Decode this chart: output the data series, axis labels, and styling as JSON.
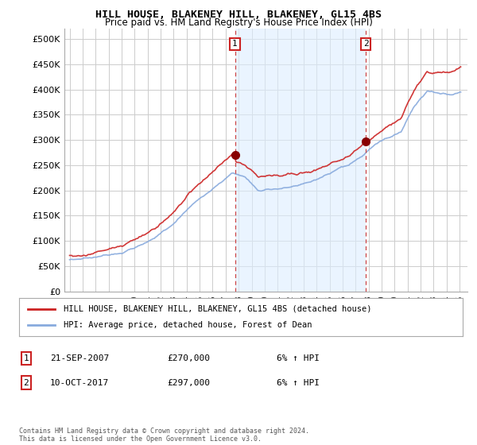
{
  "title": "HILL HOUSE, BLAKENEY HILL, BLAKENEY, GL15 4BS",
  "subtitle": "Price paid vs. HM Land Registry's House Price Index (HPI)",
  "ylim": [
    0,
    520000
  ],
  "yticks": [
    0,
    50000,
    100000,
    150000,
    200000,
    250000,
    300000,
    350000,
    400000,
    450000,
    500000
  ],
  "ytick_labels": [
    "£0",
    "£50K",
    "£100K",
    "£150K",
    "£200K",
    "£250K",
    "£300K",
    "£350K",
    "£400K",
    "£450K",
    "£500K"
  ],
  "xlim_left": 1994.6,
  "xlim_right": 2025.6,
  "legend_label_red": "HILL HOUSE, BLAKENEY HILL, BLAKENEY, GL15 4BS (detached house)",
  "legend_label_blue": "HPI: Average price, detached house, Forest of Dean",
  "legend_color_red": "#cc2222",
  "legend_color_blue": "#88aadd",
  "shade_color": "#ddeeff",
  "vline_color": "#cc4444",
  "sale1_year": 2007.72,
  "sale1_price": 270000,
  "sale2_year": 2017.78,
  "sale2_price": 297000,
  "ann1_num": "1",
  "ann1_date": "21-SEP-2007",
  "ann1_price": "£270,000",
  "ann1_hpi": "6% ↑ HPI",
  "ann2_num": "2",
  "ann2_date": "10-OCT-2017",
  "ann2_price": "£297,000",
  "ann2_hpi": "6% ↑ HPI",
  "footer": "Contains HM Land Registry data © Crown copyright and database right 2024.\nThis data is licensed under the Open Government Licence v3.0.",
  "bg_color": "#ffffff",
  "grid_color": "#cccccc"
}
